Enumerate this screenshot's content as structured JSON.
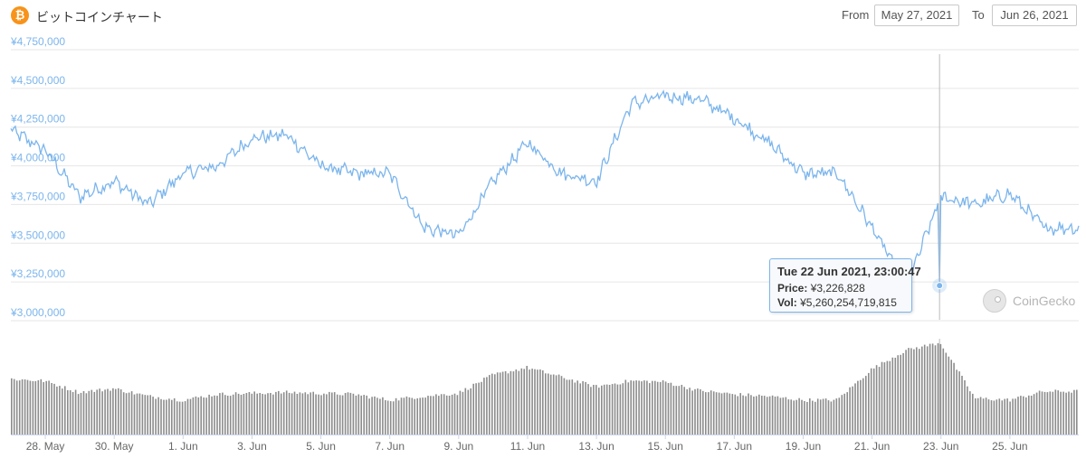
{
  "header": {
    "title": "ビットコインチャート",
    "coin_icon": "bitcoin-icon",
    "from_label": "From",
    "from_value": "May 27, 2021",
    "to_label": "To",
    "to_value": "Jun 26, 2021"
  },
  "tooltip": {
    "title": "Tue 22 Jun 2021, 23:00:47",
    "price_label": "Price:",
    "price_value": "¥3,226,828",
    "vol_label": "Vol:",
    "vol_value": "¥5,260,254,719,815"
  },
  "watermark": {
    "text": "CoinGecko",
    "icon": "gecko-icon"
  },
  "colors": {
    "line": "#7cb5ec",
    "volume": "#8c8c8c",
    "grid": "#e6e6e6",
    "axis_text": "#7cb5ec",
    "crosshair": "#bbbbbb"
  },
  "chart_data": [
    {
      "type": "line",
      "ylabel": "",
      "ylim": [
        3000000,
        4750000
      ],
      "yticks": [
        3000000,
        3250000,
        3500000,
        3750000,
        4000000,
        4250000,
        4500000,
        4750000
      ],
      "ytick_labels": [
        "¥3,000,000",
        "¥3,250,000",
        "¥3,500,000",
        "¥3,750,000",
        "¥4,000,000",
        "¥4,250,000",
        "¥4,500,000",
        "¥4,750,000"
      ],
      "grid": true,
      "xlim": [
        "2021-05-27",
        "2021-06-26"
      ],
      "x": [
        "2021-05-27",
        "2021-05-28",
        "2021-05-29",
        "2021-05-30",
        "2021-05-31",
        "2021-06-01",
        "2021-06-02",
        "2021-06-03",
        "2021-06-04",
        "2021-06-05",
        "2021-06-06",
        "2021-06-07",
        "2021-06-08",
        "2021-06-09",
        "2021-06-10",
        "2021-06-11",
        "2021-06-12",
        "2021-06-13",
        "2021-06-14",
        "2021-06-15",
        "2021-06-16",
        "2021-06-17",
        "2021-06-18",
        "2021-06-19",
        "2021-06-20",
        "2021-06-21",
        "2021-06-22",
        "2021-06-23",
        "2021-06-24",
        "2021-06-25",
        "2021-06-26"
      ],
      "series": [
        {
          "values": [
            4230000,
            4100000,
            3800000,
            3900000,
            3750000,
            3950000,
            4000000,
            4180000,
            4200000,
            4000000,
            3950000,
            3950000,
            3600000,
            3550000,
            3900000,
            4150000,
            3950000,
            3900000,
            4400000,
            4450000,
            4430000,
            4310000,
            4150000,
            3950000,
            3950000,
            3600000,
            3227000,
            3800000,
            3750000,
            3820000,
            3600000
          ]
        }
      ],
      "highlight": {
        "x": "2021-06-22 23:00",
        "y": 3226828
      }
    },
    {
      "type": "bar",
      "ylabel": "Volume",
      "x_tick_labels": [
        "28. May",
        "30. May",
        "1. Jun",
        "3. Jun",
        "5. Jun",
        "7. Jun",
        "9. Jun",
        "11. Jun",
        "13. Jun",
        "15. Jun",
        "17. Jun",
        "19. Jun",
        "21. Jun",
        "23. Jun",
        "25. Jun"
      ],
      "volume_relative": [
        0.58,
        0.56,
        0.44,
        0.48,
        0.4,
        0.36,
        0.42,
        0.43,
        0.44,
        0.43,
        0.42,
        0.36,
        0.4,
        0.43,
        0.62,
        0.7,
        0.6,
        0.5,
        0.56,
        0.55,
        0.46,
        0.42,
        0.4,
        0.36,
        0.36,
        0.68,
        0.88,
        0.96,
        0.38,
        0.36,
        0.45
      ]
    }
  ]
}
